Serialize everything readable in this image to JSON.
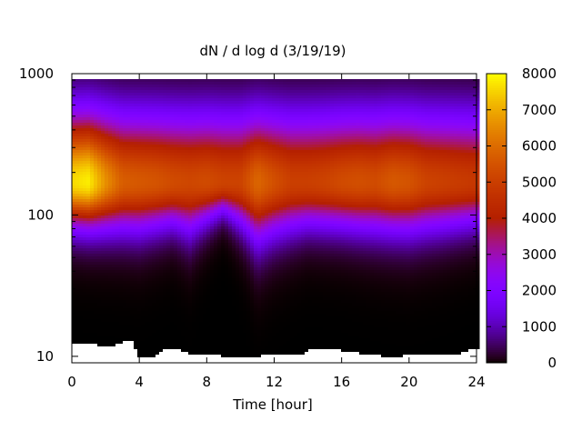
{
  "chart_data": {
    "type": "heatmap",
    "title": "dN / d log d (3/19/19)",
    "xlabel": "Time [hour]",
    "ylabel": "",
    "xlim": [
      0,
      24
    ],
    "ylim": [
      9,
      1000
    ],
    "y_scale": "log",
    "x_ticks": [
      "0",
      "4",
      "8",
      "12",
      "16",
      "20",
      "24"
    ],
    "x_tick_values": [
      0,
      4,
      8,
      12,
      16,
      20,
      24
    ],
    "y_ticks": [
      "10",
      "100",
      "1000"
    ],
    "y_tick_values": [
      10,
      100,
      1000
    ],
    "colorbar": {
      "min": 0,
      "max": 8000,
      "ticks": [
        "0",
        "1000",
        "2000",
        "3000",
        "4000",
        "5000",
        "6000",
        "7000",
        "8000"
      ],
      "tick_values": [
        0,
        1000,
        2000,
        3000,
        4000,
        5000,
        6000,
        7000,
        8000
      ],
      "colormap": "gnuplot",
      "position": "right"
    },
    "grid": false,
    "value_model": {
      "band_peak_diameter": 170,
      "band_peak_value_by_hour": [
        [
          0,
          7600
        ],
        [
          1,
          7800
        ],
        [
          2,
          6600
        ],
        [
          3,
          5700
        ],
        [
          4,
          5600
        ],
        [
          5,
          5500
        ],
        [
          6,
          5300
        ],
        [
          7,
          5200
        ],
        [
          8,
          5300
        ],
        [
          9,
          5100
        ],
        [
          10,
          5100
        ],
        [
          11,
          5900
        ],
        [
          12,
          5400
        ],
        [
          13,
          5000
        ],
        [
          14,
          5000
        ],
        [
          15,
          5100
        ],
        [
          16,
          5300
        ],
        [
          17,
          5400
        ],
        [
          18,
          5300
        ],
        [
          19,
          5600
        ],
        [
          20,
          5500
        ],
        [
          21,
          5100
        ],
        [
          22,
          5000
        ],
        [
          23,
          4900
        ],
        [
          24,
          4800
        ]
      ],
      "lower_edge_diameter_by_hour": [
        [
          0,
          78
        ],
        [
          2,
          75
        ],
        [
          4,
          72
        ],
        [
          6,
          80
        ],
        [
          7,
          70
        ],
        [
          9,
          100
        ],
        [
          11,
          60
        ],
        [
          12,
          68
        ],
        [
          14,
          78
        ],
        [
          16,
          76
        ],
        [
          18,
          72
        ],
        [
          20,
          70
        ],
        [
          22,
          74
        ],
        [
          24,
          80
        ]
      ],
      "data_top_diameter": 900,
      "missing_floor_diameter_by_hour": [
        [
          0,
          12.5
        ],
        [
          1,
          12.5
        ],
        [
          1.5,
          12
        ],
        [
          2.5,
          12
        ],
        [
          3,
          12.5
        ],
        [
          3.5,
          13
        ],
        [
          4,
          10
        ],
        [
          5,
          10
        ],
        [
          5.5,
          11
        ],
        [
          6.5,
          11
        ],
        [
          7,
          10.5
        ],
        [
          9,
          10
        ],
        [
          11,
          10
        ],
        [
          12,
          10.5
        ],
        [
          13.7,
          10.5
        ],
        [
          14,
          11
        ],
        [
          16,
          11
        ],
        [
          17,
          10.5
        ],
        [
          18,
          10.5
        ],
        [
          18.5,
          10
        ],
        [
          19.5,
          10
        ],
        [
          20,
          10.5
        ],
        [
          23,
          10.5
        ],
        [
          23.5,
          11
        ],
        [
          24,
          11
        ]
      ]
    }
  }
}
